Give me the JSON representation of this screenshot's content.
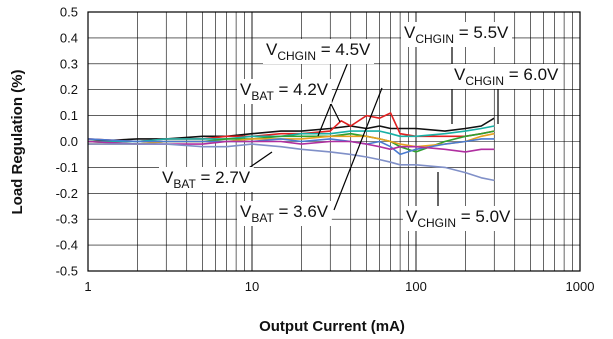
{
  "chart_data": {
    "type": "line",
    "title": "",
    "xlabel": "Output Current (mA)",
    "ylabel": "Load Regulation (%)",
    "x_scale": "log",
    "xlim": [
      1,
      1000
    ],
    "ylim": [
      -0.5,
      0.5
    ],
    "x_ticks": [
      "1",
      "10",
      "100",
      "1000"
    ],
    "y_ticks": [
      "-0.5",
      "-0.4",
      "-0.3",
      "-0.2",
      "-0.1",
      "0.0",
      "0.1",
      "0.2",
      "0.3",
      "0.4",
      "0.5"
    ],
    "grid": true,
    "series": [
      {
        "color": "#111111",
        "x": [
          1,
          2,
          3,
          5,
          7,
          10,
          15,
          20,
          30,
          40,
          50,
          60,
          70,
          80,
          100,
          150,
          200,
          250,
          300
        ],
        "y": [
          0.0,
          0.01,
          0.01,
          0.02,
          0.02,
          0.03,
          0.04,
          0.04,
          0.05,
          0.06,
          0.05,
          0.06,
          0.05,
          0.05,
          0.05,
          0.04,
          0.05,
          0.06,
          0.09
        ]
      },
      {
        "color": "#e02020",
        "x": [
          1,
          2,
          3,
          5,
          7,
          10,
          15,
          20,
          30,
          35,
          40,
          50,
          60,
          70,
          80,
          100,
          150,
          200,
          250,
          300
        ],
        "y": [
          0.01,
          0.0,
          0.01,
          0.01,
          0.02,
          0.02,
          0.03,
          0.03,
          0.04,
          0.08,
          0.06,
          0.1,
          0.09,
          0.11,
          0.03,
          0.02,
          0.02,
          0.02,
          0.03,
          0.04
        ]
      },
      {
        "color": "#19b0a5",
        "x": [
          1,
          2,
          3,
          5,
          7,
          10,
          15,
          20,
          30,
          40,
          50,
          60,
          70,
          80,
          100,
          150,
          200,
          250,
          300
        ],
        "y": [
          0.0,
          0.0,
          0.01,
          0.01,
          0.01,
          0.02,
          0.02,
          0.03,
          0.03,
          0.04,
          0.04,
          0.04,
          0.03,
          0.02,
          0.02,
          0.03,
          0.04,
          0.05,
          0.06
        ]
      },
      {
        "color": "#2fa02f",
        "x": [
          1,
          2,
          3,
          5,
          7,
          10,
          15,
          20,
          30,
          40,
          50,
          60,
          70,
          80,
          100,
          150,
          200,
          250,
          300
        ],
        "y": [
          0.0,
          -0.01,
          0.0,
          0.0,
          0.01,
          0.01,
          0.02,
          0.02,
          0.02,
          0.03,
          0.02,
          0.01,
          0.0,
          -0.02,
          -0.04,
          0.0,
          0.02,
          0.03,
          0.04
        ]
      },
      {
        "color": "#e8a020",
        "x": [
          1,
          2,
          3,
          5,
          7,
          10,
          15,
          20,
          30,
          40,
          50,
          60,
          70,
          80,
          100,
          150,
          200,
          250,
          300
        ],
        "y": [
          -0.01,
          -0.01,
          0.0,
          0.0,
          0.0,
          0.01,
          0.01,
          0.01,
          0.02,
          0.02,
          0.02,
          0.01,
          0.0,
          -0.01,
          -0.02,
          -0.01,
          0.0,
          0.02,
          0.03
        ]
      },
      {
        "color": "#4a7ad0",
        "x": [
          1,
          2,
          3,
          5,
          7,
          10,
          15,
          20,
          30,
          40,
          50,
          60,
          70,
          80,
          100,
          150,
          200,
          250,
          300
        ],
        "y": [
          0.01,
          0.0,
          0.0,
          0.0,
          0.0,
          0.0,
          0.01,
          0.0,
          0.01,
          0.0,
          -0.01,
          0.0,
          -0.02,
          -0.05,
          -0.03,
          -0.01,
          0.0,
          0.01,
          0.01
        ]
      },
      {
        "color": "#b02fa0",
        "x": [
          1,
          2,
          3,
          5,
          7,
          10,
          15,
          20,
          30,
          40,
          50,
          60,
          70,
          80,
          100,
          150,
          200,
          250,
          300
        ],
        "y": [
          0.0,
          -0.01,
          -0.01,
          -0.01,
          0.0,
          0.0,
          0.0,
          -0.01,
          0.0,
          0.0,
          -0.01,
          -0.02,
          -0.03,
          -0.02,
          -0.02,
          -0.03,
          -0.04,
          -0.03,
          -0.03
        ]
      },
      {
        "color": "#8090c8",
        "x": [
          1,
          2,
          3,
          5,
          7,
          10,
          15,
          20,
          30,
          40,
          50,
          60,
          70,
          80,
          100,
          150,
          200,
          250,
          300
        ],
        "y": [
          -0.01,
          -0.01,
          -0.01,
          -0.02,
          -0.02,
          -0.01,
          -0.02,
          -0.03,
          -0.04,
          -0.05,
          -0.06,
          -0.07,
          -0.08,
          -0.09,
          -0.09,
          -0.1,
          -0.12,
          -0.14,
          -0.15
        ]
      }
    ],
    "annotations": [
      {
        "base": "V",
        "sub": "CHGIN",
        "rest": " = 4.5V"
      },
      {
        "base": "V",
        "sub": "CHGIN",
        "rest": " = 5.5V"
      },
      {
        "base": "V",
        "sub": "BAT",
        "rest": " = 4.2V"
      },
      {
        "base": "V",
        "sub": "CHGIN",
        "rest": " = 6.0V"
      },
      {
        "base": "V",
        "sub": "BAT",
        "rest": " = 2.7V"
      },
      {
        "base": "V",
        "sub": "BAT",
        "rest": " = 3.6V"
      },
      {
        "base": "V",
        "sub": "CHGIN",
        "rest": " = 5.0V"
      }
    ]
  }
}
